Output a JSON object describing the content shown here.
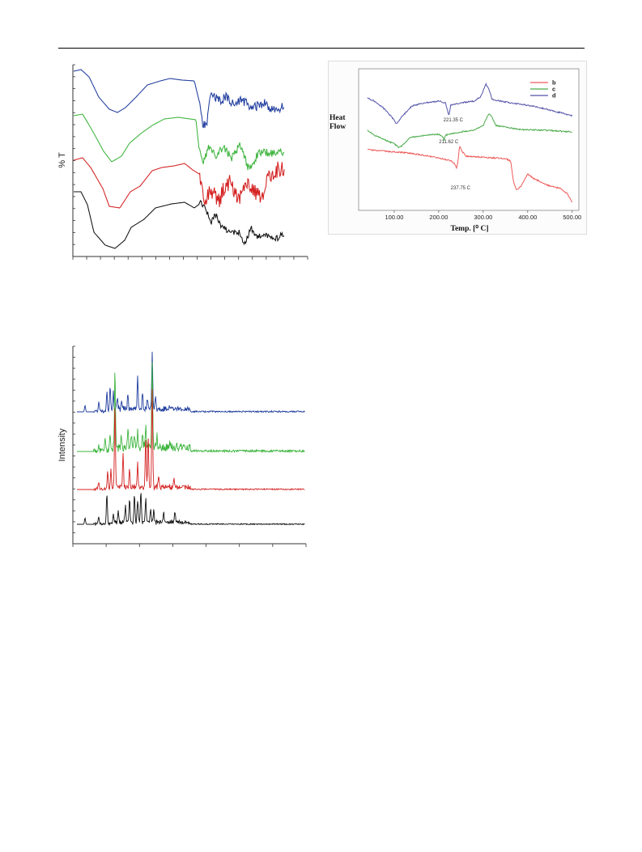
{
  "chart_data": [
    {
      "type": "line",
      "panel": "ftir",
      "ylabel": "% T",
      "xlabel": "",
      "y_tick_labels_shown": false,
      "x_tick_labels_shown": false,
      "series": [
        {
          "name": "",
          "color": "#1f3c9e"
        },
        {
          "name": "",
          "color": "#3cb43c"
        },
        {
          "name": "",
          "color": "#d42020"
        },
        {
          "name": "",
          "color": "#111111"
        }
      ]
    },
    {
      "type": "line",
      "panel": "dsc",
      "title": "",
      "ylabel": "Heat\nFlow",
      "ylabel_lines": [
        "Heat",
        "Flow"
      ],
      "xlabel": "Temp. [⁰ C]",
      "x_ticks": [
        "100.00",
        "200.00",
        "300.00",
        "400.00",
        "500.00"
      ],
      "x_tick_values": [
        100,
        200,
        300,
        400,
        500
      ],
      "xlim": [
        20,
        515
      ],
      "legend_position": "top-right",
      "series": [
        {
          "name": "b",
          "color": "#ee5a5a"
        },
        {
          "name": "c",
          "color": "#4aaa4a"
        },
        {
          "name": "d",
          "color": "#5252a8"
        }
      ],
      "annotations": [
        {
          "text": "221.35 C",
          "series": "d",
          "x": 221.35
        },
        {
          "text": "211.62 C",
          "series": "c",
          "x": 211.62
        },
        {
          "text": "237.75 C",
          "series": "b",
          "x": 237.75
        }
      ]
    },
    {
      "type": "line",
      "panel": "xrd",
      "ylabel": "Intensity",
      "xlabel": "",
      "y_tick_labels_shown": false,
      "x_tick_labels_shown": false,
      "series": [
        {
          "name": "",
          "color": "#1f3c9e"
        },
        {
          "name": "",
          "color": "#3cb43c"
        },
        {
          "name": "",
          "color": "#d42020"
        },
        {
          "name": "",
          "color": "#111111"
        }
      ]
    }
  ]
}
